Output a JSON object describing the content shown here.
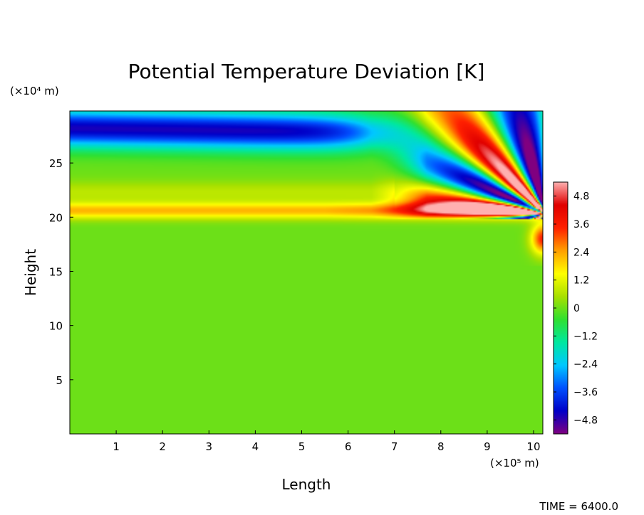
{
  "chart_data": {
    "type": "heatmap",
    "title": "Potential Temperature Deviation [K]",
    "xlabel": "Length",
    "ylabel": "Height",
    "x_unit_label": "(×10⁵ m)",
    "y_unit_label": "(×10⁴ m)",
    "xlim": [
      0,
      10.2
    ],
    "ylim": [
      0,
      29.8
    ],
    "x_ticks": [
      1,
      2,
      3,
      4,
      5,
      6,
      7,
      8,
      9,
      10
    ],
    "y_ticks": [
      5,
      10,
      15,
      20,
      25
    ],
    "colorbar": {
      "range": [
        -5.4,
        5.4
      ],
      "tick_values": [
        4.8,
        3.6,
        2.4,
        1.2,
        0,
        -1.2,
        -2.4,
        -3.6,
        -4.8
      ],
      "tick_labels": [
        "4.8",
        "3.6",
        "2.4",
        "1.2",
        "0",
        "−1.2",
        "−2.4",
        "−3.6",
        "−4.8"
      ],
      "colors": [
        "#800080",
        "#0000c8",
        "#0050ff",
        "#00c8ff",
        "#00e8a0",
        "#30e030",
        "#a8e000",
        "#ffff00",
        "#ffa000",
        "#ff2000",
        "#e00000",
        "#ffb0b0"
      ]
    },
    "field_description": "near-zero below height 19; positive band (~+3) along height 20-21; negative band (~-4.5) near height 27-29; wave train of alternating sign fanning out near x 7-10.2, heights 19-30",
    "grid": false,
    "legend": "colorbar right"
  },
  "footer": {
    "time_label": "TIME = 6400.0"
  }
}
